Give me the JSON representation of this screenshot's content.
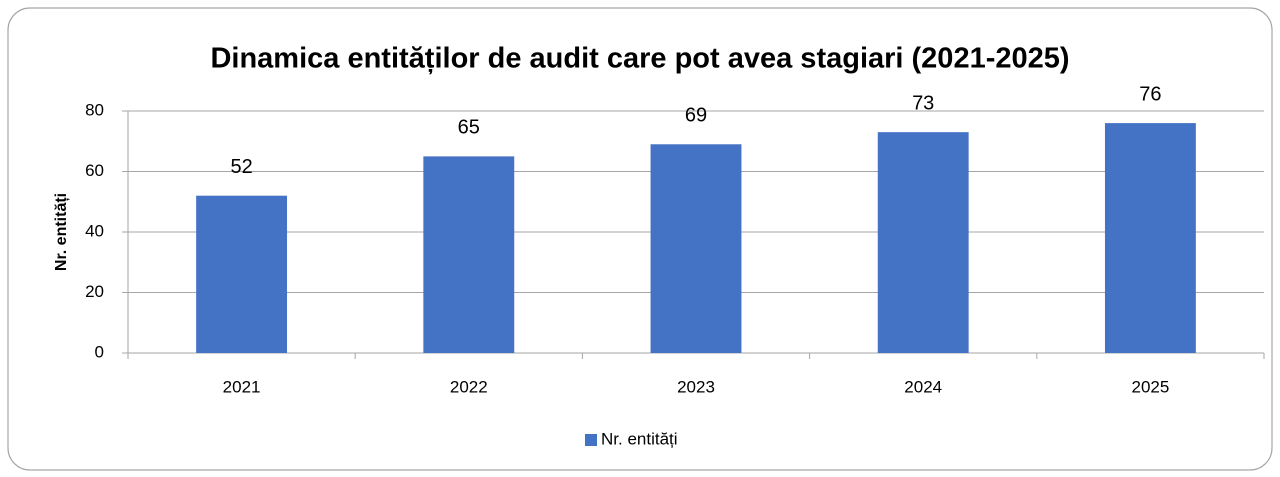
{
  "chart_data": {
    "type": "bar",
    "title": "Dinamica entităților de audit care pot avea stagiari (2021-2025)",
    "y_label": "Nr. entități",
    "categories": [
      "2021",
      "2022",
      "2023",
      "2024",
      "2025"
    ],
    "series": [
      {
        "name": "Nr. entități",
        "color": "#4472c4",
        "values": [
          52,
          65,
          69,
          73,
          76
        ]
      }
    ],
    "ylim": [
      0,
      80
    ],
    "yticks": [
      0,
      20,
      40,
      60,
      80
    ],
    "grid": true,
    "legend": "bottom"
  }
}
